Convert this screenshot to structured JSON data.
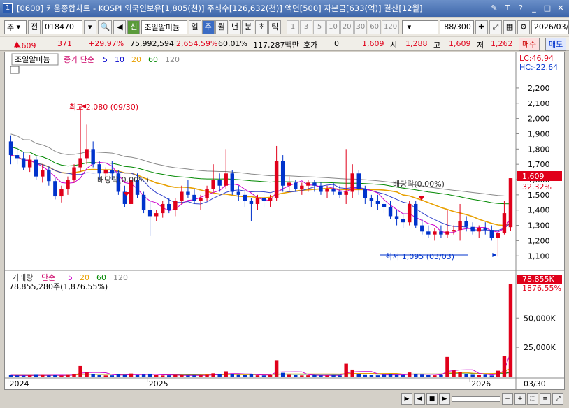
{
  "window": {
    "title": "[0600] 키움종합차트 - KOSPI 외국인보유[1,805(천)] 주식수[126,632(천)] 액면[500] 자본금[633(억)] 결산[12월]"
  },
  "toolbar": {
    "market": "주",
    "prev_label": "전",
    "code": "018470",
    "mark": "신",
    "stock_name": "조일알미늄",
    "periods": [
      "일",
      "주",
      "월",
      "년",
      "분",
      "초",
      "틱"
    ],
    "active_period": "주",
    "numbers": [
      "1",
      "3",
      "5",
      "10",
      "20",
      "30",
      "60",
      "120"
    ],
    "count": "88",
    "count_total": "/300",
    "date": "2026/03/3",
    "buy_label": "매수",
    "sell_label": "매도"
  },
  "quote": {
    "price": "1,609",
    "change": "371",
    "change_pct": "+29.97%",
    "volume": "75,992,594",
    "volume_pct": "2,654.59%",
    "ratio": "60.01%",
    "amount": "117,287백만",
    "hoga_label": "호가",
    "hoga": "0",
    "bid": "1,609",
    "open_label": "시",
    "open": "1,288",
    "high_label": "고",
    "high": "1,609",
    "low_label": "저",
    "low": "1,262"
  },
  "price_panel": {
    "name_box": "조일알미늄",
    "legend_prefix": "종가 단순",
    "ma_labels": [
      {
        "label": "5",
        "color": "#0000cc"
      },
      {
        "label": "10",
        "color": "#0000cc"
      },
      {
        "label": "20",
        "color": "#e8a000"
      },
      {
        "label": "60",
        "color": "#008800"
      },
      {
        "label": "120",
        "color": "#888888"
      }
    ],
    "lc_label": "LC:46.94",
    "hc_label": "HC:-22.64",
    "y_ticks": [
      "2,200",
      "2,100",
      "2,000",
      "1,900",
      "1,800",
      "1,700",
      "1,600",
      "1,500",
      "1,400",
      "1,300",
      "1,200",
      "1,100"
    ],
    "last_price_tag": "1,609",
    "last_pct_tag": "32.32%",
    "annotations": {
      "high": "최고 2,080 (09/30)",
      "low": "최저 1,095 (03/03)",
      "dividend1": "배당락(0.00%)",
      "dividend2": "배당락(0.00%)"
    }
  },
  "volume_panel": {
    "legend_title": "거래량",
    "legend_prefix": "단순",
    "ma_labels": [
      {
        "label": "5",
        "color": "#cc00cc"
      },
      {
        "label": "20",
        "color": "#e8a000"
      },
      {
        "label": "60",
        "color": "#008800"
      },
      {
        "label": "120",
        "color": "#888888"
      }
    ],
    "info": "78,855,280주(1,876.55%)",
    "y_ticks": [
      "50,000K",
      "25,000K"
    ],
    "last_vol_tag": "78,855K",
    "last_pct_tag": "1876.55%"
  },
  "x_axis": {
    "labels": [
      "2024",
      "2025",
      "2026"
    ],
    "end_label": "03/30"
  },
  "chart_data": {
    "type": "candlestick",
    "candles": [
      [
        1850,
        1890,
        1700,
        1760
      ],
      [
        1760,
        1810,
        1700,
        1740
      ],
      [
        1740,
        1780,
        1660,
        1680
      ],
      [
        1680,
        1760,
        1650,
        1730
      ],
      [
        1730,
        1750,
        1600,
        1620
      ],
      [
        1620,
        1700,
        1580,
        1660
      ],
      [
        1660,
        1680,
        1560,
        1590
      ],
      [
        1590,
        1610,
        1470,
        1490
      ],
      [
        1490,
        1560,
        1450,
        1540
      ],
      [
        1540,
        1620,
        1500,
        1600
      ],
      [
        1600,
        1700,
        1580,
        1680
      ],
      [
        1680,
        2080,
        1650,
        1740
      ],
      [
        1740,
        1960,
        1700,
        1800
      ],
      [
        1800,
        1850,
        1680,
        1700
      ],
      [
        1700,
        1720,
        1600,
        1640
      ],
      [
        1640,
        1680,
        1590,
        1660
      ],
      [
        1660,
        1720,
        1600,
        1640
      ],
      [
        1640,
        1660,
        1500,
        1520
      ],
      [
        1520,
        1560,
        1420,
        1440
      ],
      [
        1440,
        1620,
        1420,
        1600
      ],
      [
        1600,
        1640,
        1480,
        1500
      ],
      [
        1500,
        1520,
        1380,
        1400
      ],
      [
        1400,
        1460,
        1230,
        1360
      ],
      [
        1360,
        1400,
        1330,
        1380
      ],
      [
        1380,
        1460,
        1350,
        1440
      ],
      [
        1440,
        1480,
        1380,
        1400
      ],
      [
        1400,
        1480,
        1360,
        1460
      ],
      [
        1460,
        1560,
        1440,
        1520
      ],
      [
        1520,
        1600,
        1480,
        1500
      ],
      [
        1500,
        1540,
        1440,
        1460
      ],
      [
        1460,
        1500,
        1400,
        1480
      ],
      [
        1480,
        1560,
        1460,
        1540
      ],
      [
        1540,
        1700,
        1520,
        1600
      ],
      [
        1600,
        1640,
        1520,
        1560
      ],
      [
        1560,
        1800,
        1540,
        1640
      ],
      [
        1640,
        1660,
        1500,
        1520
      ],
      [
        1520,
        1560,
        1460,
        1500
      ],
      [
        1500,
        1540,
        1420,
        1460
      ],
      [
        1460,
        1480,
        1330,
        1440
      ],
      [
        1440,
        1500,
        1400,
        1480
      ],
      [
        1480,
        1520,
        1420,
        1460
      ],
      [
        1460,
        1500,
        1420,
        1480
      ],
      [
        1480,
        1820,
        1460,
        1720
      ],
      [
        1720,
        1760,
        1520,
        1560
      ],
      [
        1560,
        1620,
        1520,
        1580
      ],
      [
        1580,
        1600,
        1520,
        1540
      ],
      [
        1540,
        1580,
        1500,
        1560
      ],
      [
        1560,
        1600,
        1520,
        1580
      ],
      [
        1580,
        1600,
        1520,
        1560
      ],
      [
        1560,
        1580,
        1500,
        1520
      ],
      [
        1520,
        1560,
        1480,
        1540
      ],
      [
        1540,
        1580,
        1500,
        1520
      ],
      [
        1520,
        1560,
        1480,
        1500
      ],
      [
        1500,
        1800,
        1440,
        1520
      ],
      [
        1520,
        1700,
        1480,
        1640
      ],
      [
        1640,
        1660,
        1500,
        1540
      ],
      [
        1540,
        1560,
        1440,
        1480
      ],
      [
        1480,
        1500,
        1420,
        1460
      ],
      [
        1460,
        1500,
        1400,
        1440
      ],
      [
        1440,
        1480,
        1380,
        1420
      ],
      [
        1420,
        1460,
        1340,
        1360
      ],
      [
        1360,
        1400,
        1300,
        1340
      ],
      [
        1340,
        1380,
        1280,
        1320
      ],
      [
        1320,
        1460,
        1300,
        1440
      ],
      [
        1440,
        1460,
        1280,
        1300
      ],
      [
        1300,
        1340,
        1240,
        1260
      ],
      [
        1260,
        1300,
        1220,
        1240
      ],
      [
        1240,
        1280,
        1200,
        1260
      ],
      [
        1260,
        1300,
        1220,
        1240
      ],
      [
        1240,
        1400,
        1220,
        1260
      ],
      [
        1260,
        1300,
        1240,
        1270
      ],
      [
        1270,
        1440,
        1200,
        1330
      ],
      [
        1330,
        1360,
        1260,
        1290
      ],
      [
        1290,
        1320,
        1240,
        1260
      ],
      [
        1260,
        1300,
        1220,
        1280
      ],
      [
        1280,
        1320,
        1240,
        1270
      ],
      [
        1270,
        1300,
        1200,
        1220
      ],
      [
        1220,
        1260,
        1095,
        1250
      ],
      [
        1250,
        1460,
        1240,
        1380
      ],
      [
        1288,
        1609,
        1262,
        1609
      ]
    ],
    "volumes": [
      1.2,
      1.0,
      0.9,
      1.1,
      1.5,
      1.3,
      1.0,
      1.2,
      0.9,
      1.4,
      2.0,
      9.0,
      3.5,
      1.8,
      1.2,
      1.0,
      1.1,
      1.8,
      1.4,
      2.6,
      1.3,
      1.6,
      2.4,
      1.2,
      1.0,
      1.1,
      1.3,
      1.2,
      0.9,
      1.0,
      1.1,
      1.5,
      2.8,
      1.9,
      4.5,
      2.2,
      1.4,
      1.2,
      2.0,
      1.1,
      1.0,
      1.2,
      13.5,
      3.2,
      1.5,
      1.2,
      1.0,
      1.1,
      1.2,
      1.0,
      0.9,
      1.1,
      1.0,
      11.0,
      6.0,
      2.1,
      1.3,
      1.2,
      1.1,
      1.5,
      2.0,
      1.4,
      1.3,
      3.5,
      2.0,
      1.6,
      1.2,
      1.1,
      1.4,
      16.8,
      5.2,
      4.0,
      1.8,
      1.5,
      1.2,
      1.6,
      1.0,
      5.0,
      17.5,
      78.9
    ]
  }
}
